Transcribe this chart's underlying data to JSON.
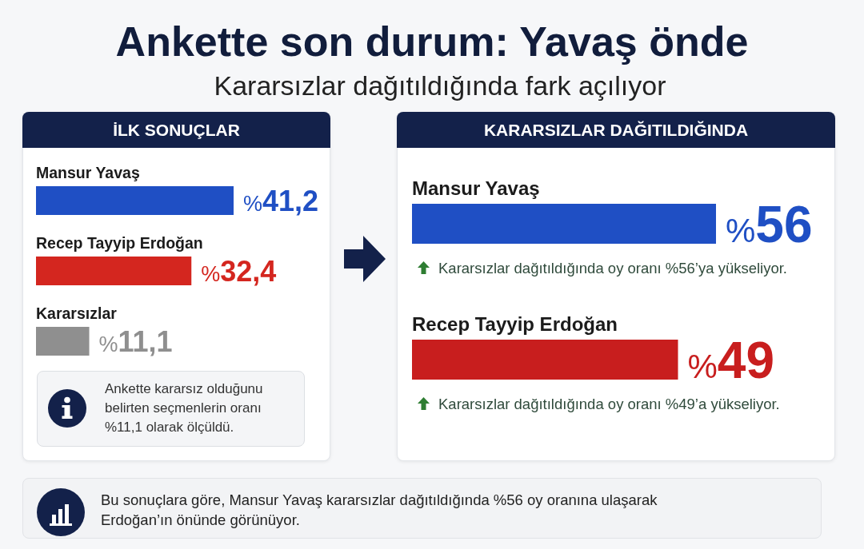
{
  "chart_data": [
    {
      "type": "other",
      "title": "Ankette son durum: Yavaş önde",
      "subtitle": "Kararsızlar dağıtıldığında fark açılıyor"
    },
    {
      "type": "bar",
      "orientation": "horizontal",
      "title": "İLK SONUÇLAR",
      "categories": [
        "Mansur Yavaş",
        "Recep Tayyip Erdoğan",
        "Kararsızlar"
      ],
      "values": [
        41.2,
        32.4,
        11.1
      ],
      "colors": [
        "#1f4fc4",
        "#d4261f",
        "#8f8f8f"
      ],
      "value_labels": [
        "%41,2",
        "%32,4",
        "%11,1"
      ],
      "tick_labels": "y",
      "annotations": [
        "Ankette kararsız olduğunu belirten seçmenlerin oranı %11,1 olarak ölçüldü."
      ]
    },
    {
      "type": "bar",
      "orientation": "horizontal",
      "title": "KARARSIZLAR DAĞITILDIĞINDA",
      "categories": [
        "Mansur Yavaş",
        "Recep Tayyip Erdoğan"
      ],
      "values": [
        56,
        49
      ],
      "colors": [
        "#1f4fc4",
        "#c81e1e"
      ],
      "value_labels": [
        "%56",
        "%49"
      ],
      "tick_labels": "y",
      "annotations": [
        {
          "text": "Kararsızlar dağıtıldığında oy oranı %56’ya yükseliyor.",
          "y": "Mansur Yavaş"
        },
        {
          "text": "Kararsızlar dağıtıldığında oy oranı %49’a yükseliyor.",
          "y": "Recep Tayyip Erdoğan"
        }
      ]
    },
    {
      "type": "other",
      "annotations": [
        "Bu sonuçlara göre, Mansur Yavaş kararsızlar dağıtıldığında %56 oy oranına ulaşarak Erdoğan’ın önünde görünüyor."
      ]
    }
  ]
}
